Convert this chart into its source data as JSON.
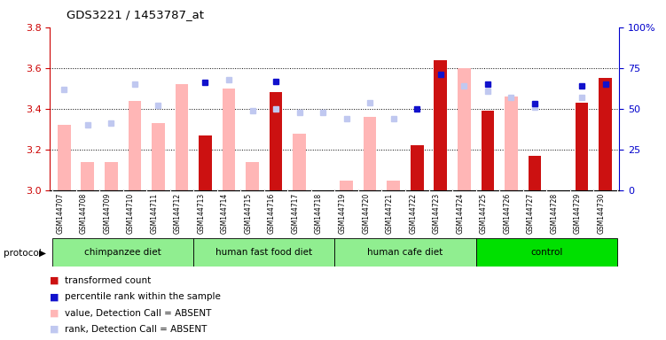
{
  "title": "GDS3221 / 1453787_at",
  "samples": [
    "GSM144707",
    "GSM144708",
    "GSM144709",
    "GSM144710",
    "GSM144711",
    "GSM144712",
    "GSM144713",
    "GSM144714",
    "GSM144715",
    "GSM144716",
    "GSM144717",
    "GSM144718",
    "GSM144719",
    "GSM144720",
    "GSM144721",
    "GSM144722",
    "GSM144723",
    "GSM144724",
    "GSM144725",
    "GSM144726",
    "GSM144727",
    "GSM144728",
    "GSM144729",
    "GSM144730"
  ],
  "value_absent": [
    3.32,
    3.14,
    3.14,
    3.44,
    3.33,
    3.52,
    null,
    3.5,
    3.14,
    null,
    3.28,
    null,
    3.05,
    3.36,
    3.05,
    null,
    null,
    3.6,
    null,
    3.46,
    null,
    null,
    3.4,
    null
  ],
  "transformed_count": [
    null,
    null,
    null,
    null,
    null,
    null,
    3.27,
    null,
    null,
    3.48,
    null,
    null,
    null,
    null,
    null,
    3.22,
    3.64,
    null,
    3.39,
    null,
    3.17,
    null,
    3.43,
    3.55
  ],
  "rank_absent_pct": [
    62,
    40,
    41,
    65,
    52,
    null,
    null,
    68,
    49,
    50,
    48,
    48,
    44,
    54,
    44,
    null,
    null,
    64,
    61,
    57,
    51,
    null,
    57,
    null
  ],
  "percentile_rank_pct": [
    null,
    null,
    null,
    null,
    null,
    null,
    66,
    null,
    null,
    67,
    null,
    null,
    null,
    null,
    null,
    50,
    71,
    null,
    65,
    null,
    53,
    null,
    64,
    65
  ],
  "groups": [
    {
      "label": "chimpanzee diet",
      "start": 0,
      "end": 5,
      "color": "#90ee90"
    },
    {
      "label": "human fast food diet",
      "start": 6,
      "end": 11,
      "color": "#90ee90"
    },
    {
      "label": "human cafe diet",
      "start": 12,
      "end": 17,
      "color": "#90ee90"
    },
    {
      "label": "control",
      "start": 18,
      "end": 23,
      "color": "#00e000"
    }
  ],
  "ylim_left": [
    3.0,
    3.8
  ],
  "ylim_right": [
    0,
    100
  ],
  "yticks_left": [
    3.0,
    3.2,
    3.4,
    3.6,
    3.8
  ],
  "yticks_right": [
    0,
    25,
    50,
    75,
    100
  ],
  "dotted_lines": [
    3.2,
    3.4,
    3.6
  ],
  "bar_width": 0.55,
  "color_value_absent": "#FFB6B6",
  "color_rank_absent": "#c0c8f0",
  "color_transformed": "#cc1111",
  "color_percentile": "#1111cc",
  "color_axis_left": "#cc0000",
  "color_axis_right": "#0000cc",
  "bg_labels": "#d8d8d8",
  "bg_white": "#ffffff"
}
